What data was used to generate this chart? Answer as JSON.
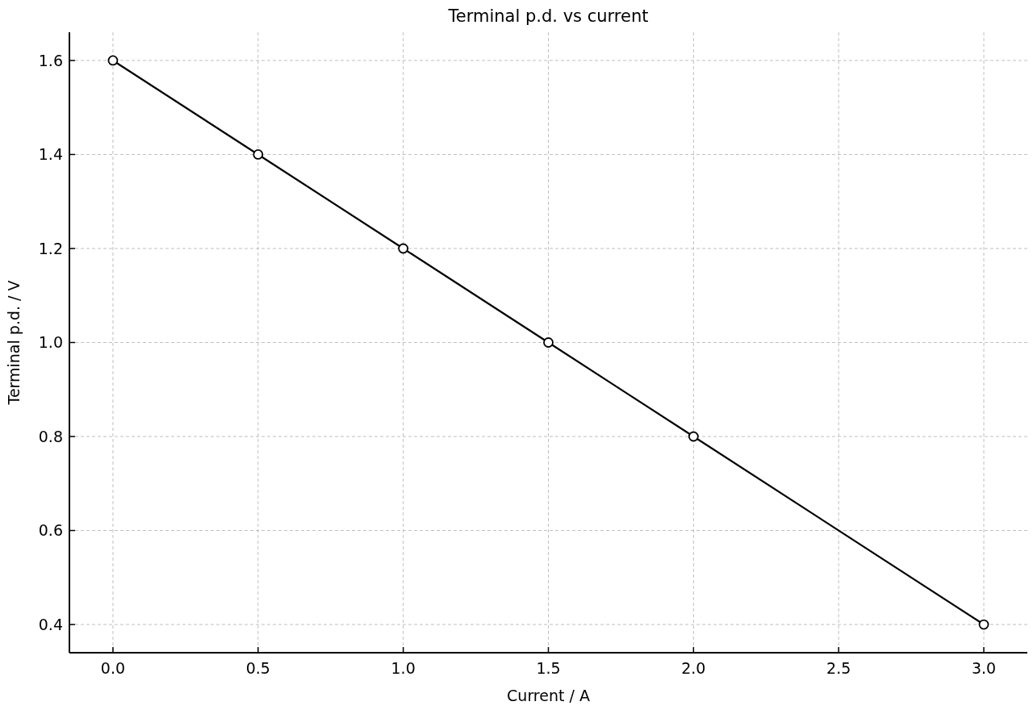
{
  "chart_data": {
    "type": "line",
    "title": "Terminal p.d. vs current",
    "xlabel": "Current / A",
    "ylabel": "Terminal p.d. / V",
    "x": [
      0,
      0.5,
      1,
      1.5,
      2,
      3
    ],
    "series": [
      {
        "color": "#000000",
        "values": [
          1.6,
          1.4,
          1.2,
          1.0,
          0.8,
          0.4
        ]
      }
    ],
    "xlim": [
      -0.15,
      3.15
    ],
    "ylim": [
      0.34,
      1.66
    ],
    "xticks": [
      {
        "value": 0,
        "label": "0.0"
      },
      {
        "value": 0.5,
        "label": "0.5"
      },
      {
        "value": 1,
        "label": "1.0"
      },
      {
        "value": 1.5,
        "label": "1.5"
      },
      {
        "value": 2,
        "label": "2.0"
      },
      {
        "value": 2.5,
        "label": "2.5"
      },
      {
        "value": 3,
        "label": "3.0"
      }
    ],
    "yticks": [
      0.4,
      0.6,
      0.8,
      {
        "value": 1,
        "label": "1.0"
      },
      1.2,
      1.4,
      1.6
    ],
    "grid": true,
    "marker": "circle",
    "line_style": "solid"
  }
}
